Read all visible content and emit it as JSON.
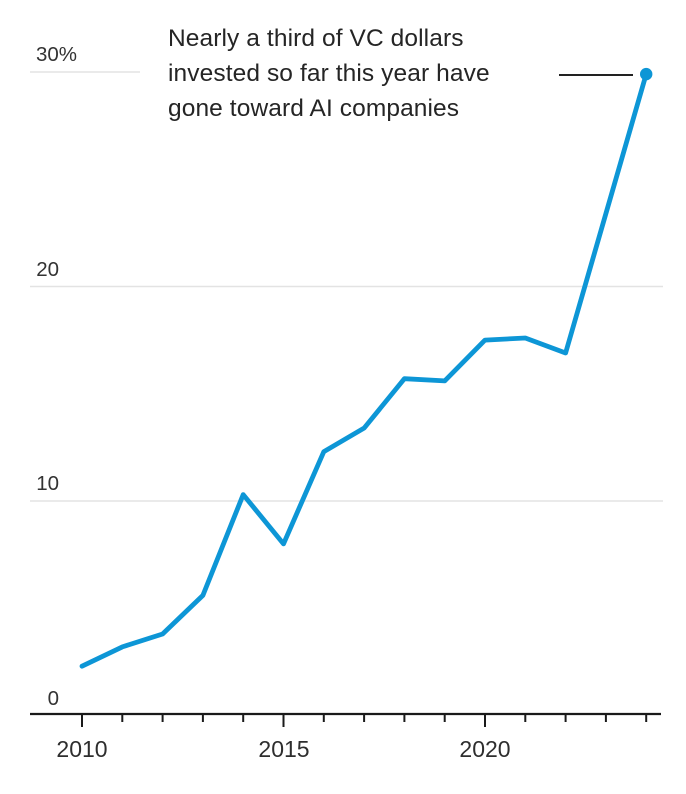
{
  "chart_data": {
    "type": "line",
    "annotation": {
      "lines": [
        "Nearly a third of VC dollars",
        "invested so far this year have",
        "gone toward AI companies"
      ]
    },
    "x": [
      2010,
      2011,
      2012,
      2013,
      2014,
      2015,
      2016,
      2017,
      2018,
      2019,
      2020,
      2021,
      2022,
      2023,
      2024
    ],
    "values": [
      2.3,
      3.2,
      3.8,
      5.6,
      10.3,
      8.0,
      12.3,
      13.4,
      15.7,
      15.6,
      17.5,
      17.6,
      16.9,
      23.4,
      29.9
    ],
    "unit": "%",
    "xlabel": "",
    "ylabel": "",
    "xlim": [
      2010,
      2024
    ],
    "ylim": [
      0,
      32
    ],
    "grid": "horizontal",
    "legend": "none",
    "yticks": [
      {
        "value": 30,
        "label": "30%"
      },
      {
        "value": 20,
        "label": "20"
      },
      {
        "value": 10,
        "label": "10"
      },
      {
        "value": 0,
        "label": "0"
      }
    ],
    "xticks": [
      {
        "value": 2010,
        "label": "2010"
      },
      {
        "value": 2015,
        "label": "2015"
      },
      {
        "value": 2020,
        "label": "2020"
      }
    ],
    "colors": {
      "line": "#0d96d6",
      "endpoint_dot": "#0d96d6",
      "annotation_text": "#252525",
      "tick_label": "#333333",
      "gridline": "#e3e3e3",
      "axis": "#1a1a1a",
      "leader_line": "#222222"
    }
  }
}
